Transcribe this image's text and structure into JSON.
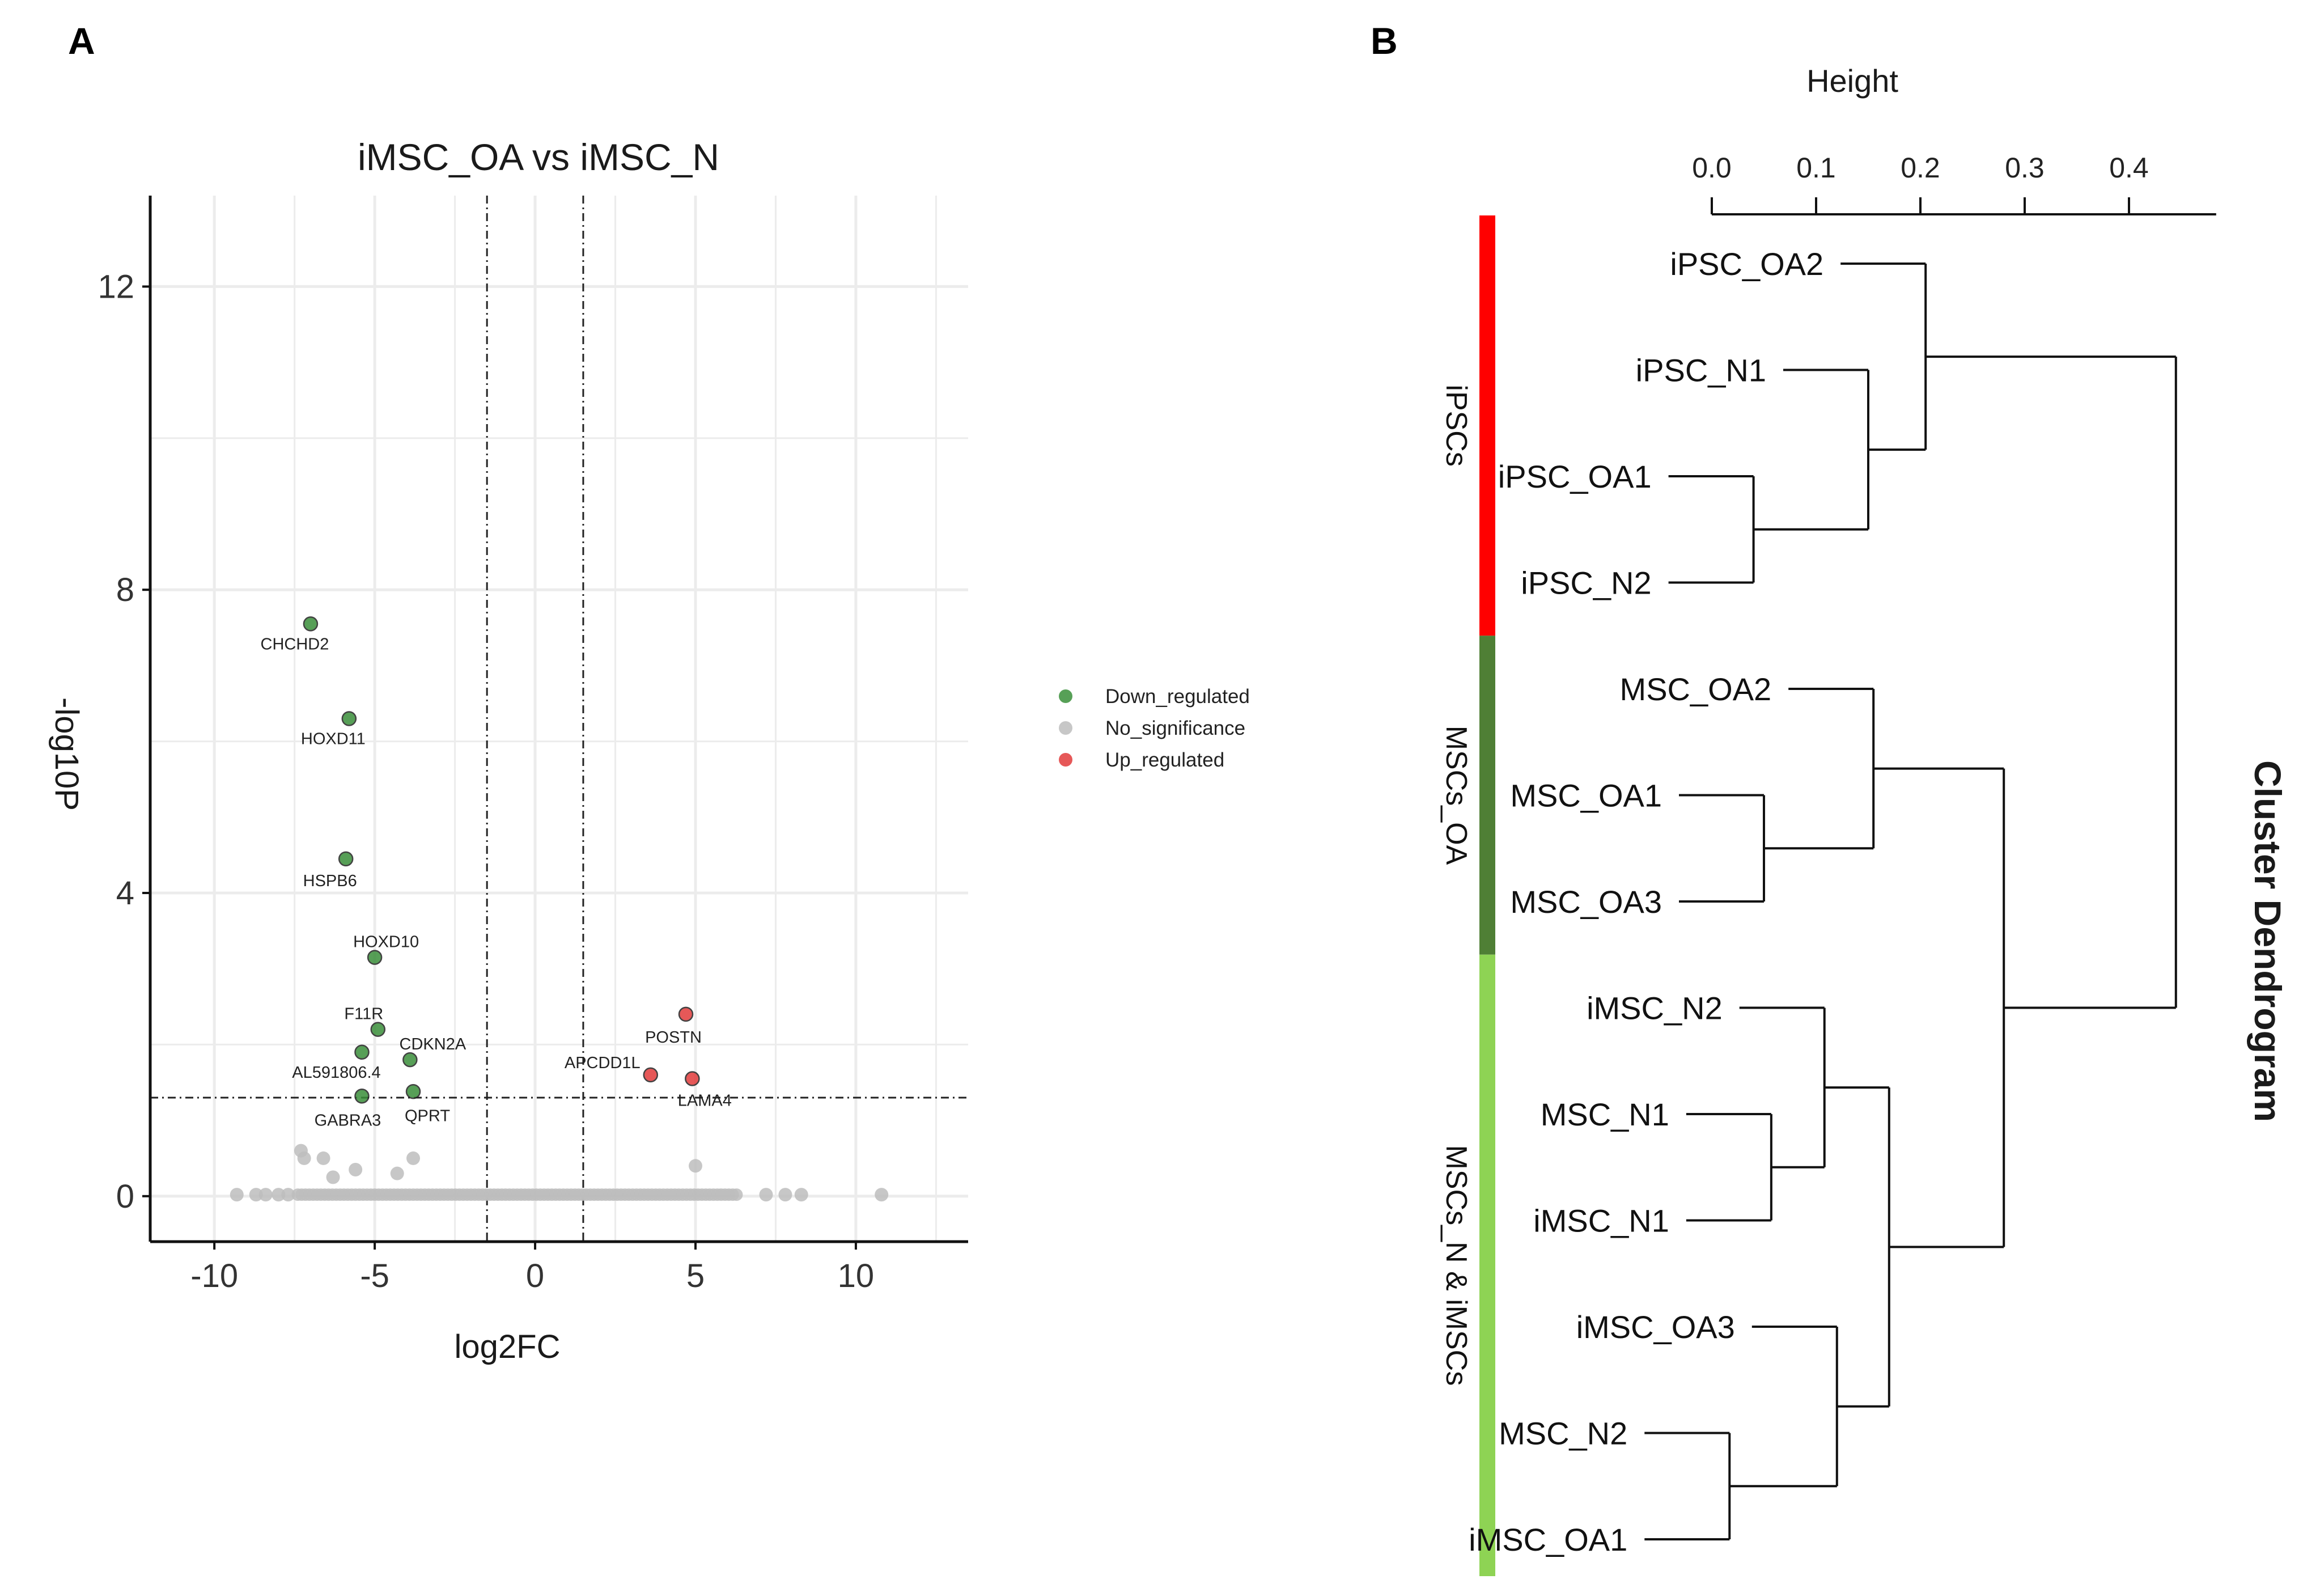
{
  "colors": {
    "down": "#3a8f3a",
    "nosig": "#bdbdbd",
    "up": "#e23b3b",
    "group_ipscs": "#ff0000",
    "group_mscs_oa": "#4f7f35",
    "group_mscs_n": "#8ed354"
  },
  "chart_data": [
    {
      "panel": "A",
      "type": "scatter",
      "title": "iMSC_OA vs iMSC_N",
      "xlabel": "log2FC",
      "ylabel": "-log10P",
      "xlim": [
        -12,
        13.5
      ],
      "ylim": [
        -0.6,
        13.2
      ],
      "xticks": [
        -10,
        -5,
        0,
        5,
        10
      ],
      "xtick_labels": [
        "-10",
        "-5",
        "0",
        "5",
        "10"
      ],
      "yticks": [
        0,
        4,
        8,
        12
      ],
      "ytick_labels": [
        "0",
        "4",
        "8",
        "12"
      ],
      "grid": true,
      "thresholds": {
        "log2fc": [
          -1.5,
          1.5
        ],
        "neg_log10p": 1.3
      },
      "legend": {
        "placement": "right",
        "entries": [
          {
            "key": "down",
            "label": "Down_regulated"
          },
          {
            "key": "nosig",
            "label": "No_significance"
          },
          {
            "key": "up",
            "label": "Up_regulated"
          }
        ]
      },
      "points": [
        {
          "x": -7.0,
          "y": 7.55,
          "group": "down",
          "label": "CHCHD2"
        },
        {
          "x": -5.8,
          "y": 6.3,
          "group": "down",
          "label": "HOXD11"
        },
        {
          "x": -5.9,
          "y": 4.45,
          "group": "down",
          "label": "HSPB6"
        },
        {
          "x": -5.0,
          "y": 3.15,
          "group": "down",
          "label": "HOXD10"
        },
        {
          "x": -4.9,
          "y": 2.2,
          "group": "down",
          "label": "F11R"
        },
        {
          "x": -5.4,
          "y": 1.9,
          "group": "down",
          "label": "AL591806.4"
        },
        {
          "x": -3.9,
          "y": 1.8,
          "group": "down",
          "label": "CDKN2A"
        },
        {
          "x": -5.4,
          "y": 1.32,
          "group": "down",
          "label": "GABRA3"
        },
        {
          "x": -3.8,
          "y": 1.38,
          "group": "down",
          "label": "QPRT"
        },
        {
          "x": 4.7,
          "y": 2.4,
          "group": "up",
          "label": "POSTN"
        },
        {
          "x": 3.6,
          "y": 1.6,
          "group": "up",
          "label": "APCDD1L"
        },
        {
          "x": 4.9,
          "y": 1.55,
          "group": "up",
          "label": "LAMA4"
        },
        {
          "x": -7.3,
          "y": 0.6,
          "group": "nosig"
        },
        {
          "x": -7.2,
          "y": 0.5,
          "group": "nosig"
        },
        {
          "x": -6.6,
          "y": 0.5,
          "group": "nosig"
        },
        {
          "x": -6.3,
          "y": 0.25,
          "group": "nosig"
        },
        {
          "x": -5.6,
          "y": 0.35,
          "group": "nosig"
        },
        {
          "x": -4.3,
          "y": 0.3,
          "group": "nosig"
        },
        {
          "x": -3.8,
          "y": 0.5,
          "group": "nosig"
        },
        {
          "x": 5.0,
          "y": 0.4,
          "group": "nosig"
        },
        {
          "x": -9.3,
          "y": 0.02,
          "group": "nosig"
        },
        {
          "x": -8.7,
          "y": 0.02,
          "group": "nosig"
        },
        {
          "x": -8.4,
          "y": 0.02,
          "group": "nosig"
        },
        {
          "x": -8.0,
          "y": 0.02,
          "group": "nosig"
        },
        {
          "x": -7.7,
          "y": 0.02,
          "group": "nosig"
        },
        {
          "x": 7.2,
          "y": 0.02,
          "group": "nosig"
        },
        {
          "x": 7.8,
          "y": 0.02,
          "group": "nosig"
        },
        {
          "x": 8.3,
          "y": 0.02,
          "group": "nosig"
        },
        {
          "x": 10.8,
          "y": 0.02,
          "group": "nosig"
        }
      ],
      "dense_band": {
        "x_range": [
          -7.4,
          6.4
        ],
        "y": 0.02,
        "group": "nosig"
      }
    },
    {
      "panel": "B",
      "type": "dendrogram",
      "title": "Cluster Dendrogram",
      "axis_label": "Height",
      "axis_range": [
        0,
        0.47
      ],
      "ticks": [
        0.0,
        0.1,
        0.2,
        0.3,
        0.4
      ],
      "tick_labels": [
        "0.0",
        "0.1",
        "0.2",
        "0.3",
        "0.4"
      ],
      "leaves": [
        "iPSC_OA2",
        "iPSC_N1",
        "iPSC_OA1",
        "iPSC_N2",
        "MSC_OA2",
        "MSC_OA1",
        "MSC_OA3",
        "iMSC_N2",
        "MSC_N1",
        "iMSC_N1",
        "iMSC_OA3",
        "MSC_N2",
        "iMSC_OA1"
      ],
      "groups": [
        {
          "label": "iPSCs",
          "from": 0,
          "to": 3,
          "color_key": "group_ipscs"
        },
        {
          "label": "MSCs_OA",
          "from": 4,
          "to": 6,
          "color_key": "group_mscs_oa"
        },
        {
          "label": "MSCs_N & iMSCs",
          "from": 7,
          "to": 12,
          "color_key": "group_mscs_n"
        }
      ],
      "merges": [
        {
          "id": "m1",
          "children": [
            "iPSC_OA1",
            "iPSC_N2"
          ],
          "height": 0.04
        },
        {
          "id": "m2",
          "children": [
            "iPSC_N1",
            "m1"
          ],
          "height": 0.15
        },
        {
          "id": "m3",
          "children": [
            "iPSC_OA2",
            "m2"
          ],
          "height": 0.205
        },
        {
          "id": "m4",
          "children": [
            "MSC_OA1",
            "MSC_OA3"
          ],
          "height": 0.05
        },
        {
          "id": "m5",
          "children": [
            "MSC_OA2",
            "m4"
          ],
          "height": 0.155
        },
        {
          "id": "m6",
          "children": [
            "MSC_N1",
            "iMSC_N1"
          ],
          "height": 0.057
        },
        {
          "id": "m7",
          "children": [
            "iMSC_N2",
            "m6"
          ],
          "height": 0.108
        },
        {
          "id": "m8",
          "children": [
            "MSC_N2",
            "iMSC_OA1"
          ],
          "height": 0.017
        },
        {
          "id": "m9",
          "children": [
            "iMSC_OA3",
            "m8"
          ],
          "height": 0.12
        },
        {
          "id": "m10",
          "children": [
            "m7",
            "m9"
          ],
          "height": 0.17
        },
        {
          "id": "m11",
          "children": [
            "m5",
            "m10"
          ],
          "height": 0.28
        },
        {
          "id": "m12",
          "children": [
            "m3",
            "m11"
          ],
          "height": 0.445
        }
      ]
    }
  ],
  "panels": {
    "a_letter": "A",
    "b_letter": "B"
  }
}
